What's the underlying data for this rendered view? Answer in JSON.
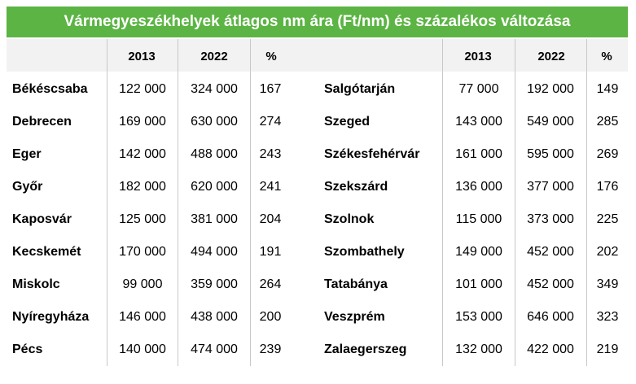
{
  "title": "Vármegyeszékhelyek átlagos nm ára (Ft/nm) és százalékos változása",
  "headers": {
    "left": [
      "",
      "2013",
      "2022",
      "%"
    ],
    "right": [
      "",
      "2013",
      "2022",
      "%"
    ]
  },
  "left_rows": [
    {
      "city": "Békéscsaba",
      "y2013": "122 000",
      "y2022": "324 000",
      "pct": "167"
    },
    {
      "city": "Debrecen",
      "y2013": "169 000",
      "y2022": "630 000",
      "pct": "274"
    },
    {
      "city": "Eger",
      "y2013": "142 000",
      "y2022": "488 000",
      "pct": "243"
    },
    {
      "city": "Győr",
      "y2013": "182 000",
      "y2022": "620 000",
      "pct": "241"
    },
    {
      "city": "Kaposvár",
      "y2013": "125 000",
      "y2022": "381 000",
      "pct": "204"
    },
    {
      "city": "Kecskemét",
      "y2013": "170 000",
      "y2022": "494 000",
      "pct": "191"
    },
    {
      "city": "Miskolc",
      "y2013": "99 000",
      "y2022": "359 000",
      "pct": "264"
    },
    {
      "city": "Nyíregyháza",
      "y2013": "146 000",
      "y2022": "438 000",
      "pct": "200"
    },
    {
      "city": "Pécs",
      "y2013": "140 000",
      "y2022": "474 000",
      "pct": "239"
    }
  ],
  "right_rows": [
    {
      "city": "Salgótarján",
      "y2013": "77 000",
      "y2022": "192 000",
      "pct": "149"
    },
    {
      "city": "Szeged",
      "y2013": "143 000",
      "y2022": "549 000",
      "pct": "285"
    },
    {
      "city": "Székesfehérvár",
      "y2013": "161 000",
      "y2022": "595 000",
      "pct": "269"
    },
    {
      "city": "Szekszárd",
      "y2013": "136 000",
      "y2022": "377 000",
      "pct": "176"
    },
    {
      "city": "Szolnok",
      "y2013": "115 000",
      "y2022": "373 000",
      "pct": "225"
    },
    {
      "city": "Szombathely",
      "y2013": "149 000",
      "y2022": "452 000",
      "pct": "202"
    },
    {
      "city": "Tatabánya",
      "y2013": "101 000",
      "y2022": "452 000",
      "pct": "349"
    },
    {
      "city": "Veszprém",
      "y2013": "153 000",
      "y2022": "646 000",
      "pct": "323"
    },
    {
      "city": "Zalaegerszeg",
      "y2013": "132 000",
      "y2022": "422 000",
      "pct": "219"
    }
  ],
  "colors": {
    "title_bg": "#5bb443",
    "header_bg": "#f2f2f2",
    "divider": "#c8c8c8"
  }
}
